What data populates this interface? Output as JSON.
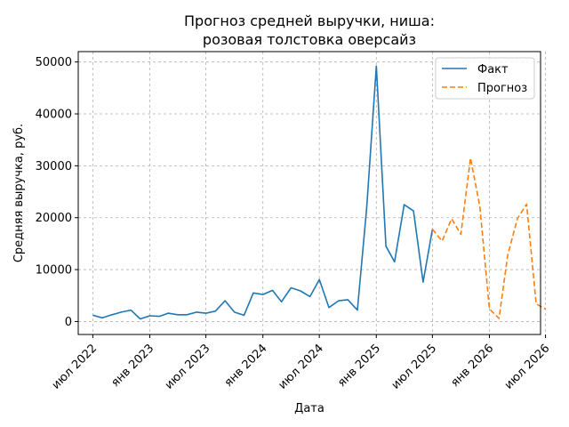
{
  "chart_data": {
    "type": "line",
    "title": [
      "Прогноз средней выручки, ниша:",
      "розовая толстовка оверсайз"
    ],
    "xlabel": "Дата",
    "ylabel": "Средняя выручка, руб.",
    "ylim": [
      -2500,
      52000
    ],
    "xlim": [
      "2022-05-15",
      "2026-06-15"
    ],
    "grid": true,
    "legend_position": "top-right",
    "x_ticks": [
      {
        "date": "2022-07-01",
        "label": "июл 2022"
      },
      {
        "date": "2023-01-01",
        "label": "янв 2023"
      },
      {
        "date": "2023-07-01",
        "label": "июл 2023"
      },
      {
        "date": "2024-01-01",
        "label": "янв 2024"
      },
      {
        "date": "2024-07-01",
        "label": "июл 2024"
      },
      {
        "date": "2025-01-01",
        "label": "янв 2025"
      },
      {
        "date": "2025-07-01",
        "label": "июл 2025"
      },
      {
        "date": "2026-01-01",
        "label": "янв 2026"
      },
      {
        "date": "2026-07-01",
        "label": "июл 2026"
      }
    ],
    "y_ticks": [
      0,
      10000,
      20000,
      30000,
      40000,
      50000
    ],
    "series": [
      {
        "name": "Факт",
        "color": "#1f77b4",
        "style": "solid",
        "points": [
          [
            "2022-07-01",
            1200
          ],
          [
            "2022-08-01",
            700
          ],
          [
            "2022-09-01",
            1300
          ],
          [
            "2022-10-01",
            1800
          ],
          [
            "2022-11-01",
            2200
          ],
          [
            "2022-12-01",
            500
          ],
          [
            "2023-01-01",
            1100
          ],
          [
            "2023-02-01",
            1000
          ],
          [
            "2023-03-01",
            1600
          ],
          [
            "2023-04-01",
            1300
          ],
          [
            "2023-05-01",
            1300
          ],
          [
            "2023-06-01",
            1800
          ],
          [
            "2023-07-01",
            1600
          ],
          [
            "2023-08-01",
            2000
          ],
          [
            "2023-09-01",
            4000
          ],
          [
            "2023-10-01",
            1800
          ],
          [
            "2023-11-01",
            1200
          ],
          [
            "2023-12-01",
            5500
          ],
          [
            "2024-01-01",
            5200
          ],
          [
            "2024-02-01",
            6000
          ],
          [
            "2024-03-01",
            3800
          ],
          [
            "2024-04-01",
            6500
          ],
          [
            "2024-05-01",
            5900
          ],
          [
            "2024-06-01",
            4800
          ],
          [
            "2024-07-01",
            8100
          ],
          [
            "2024-08-01",
            2700
          ],
          [
            "2024-09-01",
            4000
          ],
          [
            "2024-10-01",
            4200
          ],
          [
            "2024-11-01",
            2200
          ],
          [
            "2024-12-01",
            22000
          ],
          [
            "2025-01-01",
            49200
          ],
          [
            "2025-02-01",
            14500
          ],
          [
            "2025-03-01",
            11500
          ],
          [
            "2025-04-01",
            22500
          ],
          [
            "2025-05-01",
            21300
          ],
          [
            "2025-06-01",
            7600
          ],
          [
            "2025-07-01",
            17800
          ]
        ]
      },
      {
        "name": "Прогноз",
        "color": "#ff7f0e",
        "style": "dashed",
        "points": [
          [
            "2025-07-01",
            17800
          ],
          [
            "2025-08-01",
            15500
          ],
          [
            "2025-09-01",
            19800
          ],
          [
            "2025-10-01",
            16800
          ],
          [
            "2025-11-01",
            31500
          ],
          [
            "2025-12-01",
            22200
          ],
          [
            "2026-01-01",
            2400
          ],
          [
            "2026-02-01",
            600
          ],
          [
            "2026-03-01",
            12800
          ],
          [
            "2026-04-01",
            19800
          ],
          [
            "2026-05-01",
            22600
          ],
          [
            "2026-06-01",
            3400
          ],
          [
            "2026-07-01",
            2400
          ]
        ]
      }
    ]
  }
}
